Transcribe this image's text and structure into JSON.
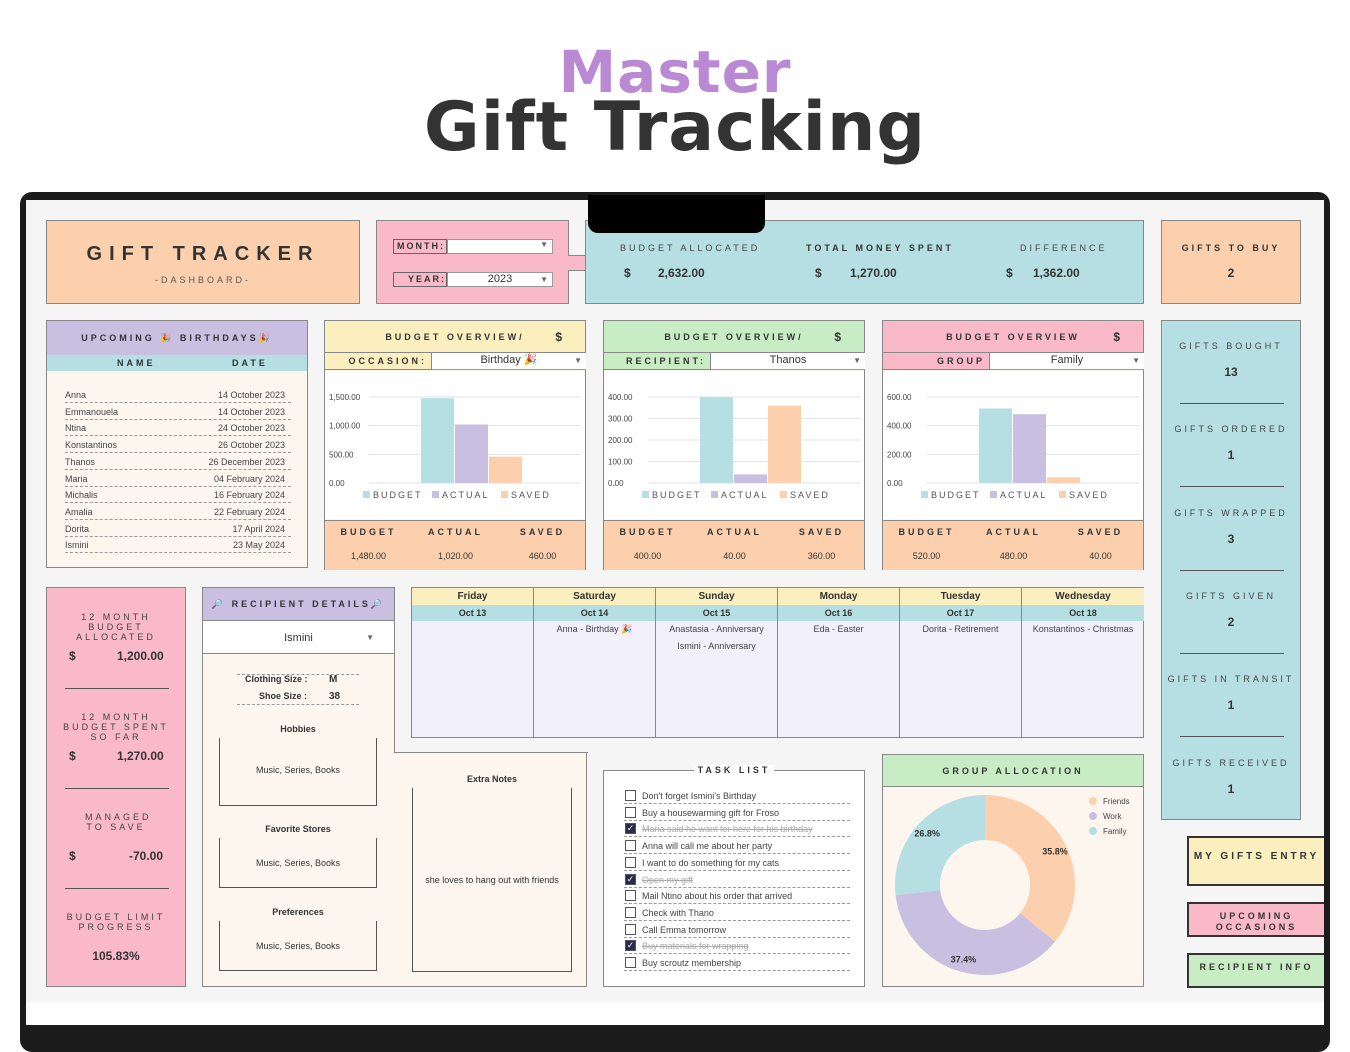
{
  "hero": {
    "line1": "Master",
    "line2": "Gift Tracking"
  },
  "title": {
    "main": "GIFT TRACKER",
    "sub": "-DASHBOARD-"
  },
  "filters": {
    "month_label": "MONTH:",
    "month_value": "",
    "year_label": "YEAR:",
    "year_value": "2023"
  },
  "summary": {
    "budget_label": "BUDGET ALLOCATED",
    "budget_value": "2,632.00",
    "spent_label": "TOTAL MONEY SPENT",
    "spent_value": "1,270.00",
    "diff_label": "DIFFERENCE",
    "diff_value": "1,362.00",
    "currency": "$"
  },
  "gifts_to_buy": {
    "label": "GIFTS TO BUY",
    "value": "2"
  },
  "birthdays": {
    "title": "UPCOMING 🎉 BIRTHDAYS🎉",
    "col_name": "NAME",
    "col_date": "DATE",
    "rows": [
      {
        "name": "Anna",
        "date": "14 October 2023"
      },
      {
        "name": "Emmanouela",
        "date": "14 October 2023"
      },
      {
        "name": "Ntina",
        "date": "24 October 2023"
      },
      {
        "name": "Konstantinos",
        "date": "26 October 2023"
      },
      {
        "name": "Thanos",
        "date": "26 December 2023"
      },
      {
        "name": "Maria",
        "date": "04 February 2024"
      },
      {
        "name": "Michalis",
        "date": "16 February 2024"
      },
      {
        "name": "Amalia",
        "date": "22 February 2024"
      },
      {
        "name": "Dorita",
        "date": "17 April 2024"
      },
      {
        "name": "Ismini",
        "date": "23 May 2024"
      }
    ]
  },
  "overview_occasion": {
    "title": "BUDGET OVERVIEW/",
    "currency": "$",
    "filter_label": "OCCASION:",
    "filter_value": "Birthday 🎉",
    "legend": [
      "BUDGET",
      "ACTUAL",
      "SAVED"
    ],
    "foot_labels": [
      "BUDGET",
      "ACTUAL",
      "SAVED"
    ],
    "foot_values": [
      "1,480.00",
      "1,020.00",
      "460.00"
    ],
    "ticks": [
      "1,500.00",
      "1,000.00",
      "500.00",
      "0.00"
    ]
  },
  "overview_recipient": {
    "title": "BUDGET OVERVIEW/",
    "currency": "$",
    "filter_label": "RECIPIENT:",
    "filter_value": "Thanos",
    "legend": [
      "BUDGET",
      "ACTUAL",
      "SAVED"
    ],
    "foot_labels": [
      "BUDGET",
      "ACTUAL",
      "SAVED"
    ],
    "foot_values": [
      "400.00",
      "40.00",
      "360.00"
    ],
    "ticks": [
      "400.00",
      "300.00",
      "200.00",
      "100.00",
      "0.00"
    ]
  },
  "overview_group": {
    "title": "BUDGET OVERVIEW",
    "currency": "$",
    "filter_label": "GROUP",
    "filter_value": "Family",
    "legend": [
      "BUDGET",
      "ACTUAL",
      "SAVED"
    ],
    "foot_labels": [
      "BUDGET",
      "ACTUAL",
      "SAVED"
    ],
    "foot_values": [
      "520.00",
      "480.00",
      "40.00"
    ],
    "ticks": [
      "600.00",
      "400.00",
      "200.00",
      "0.00"
    ]
  },
  "chart_data": [
    {
      "type": "bar",
      "categories": [
        "BUDGET",
        "ACTUAL",
        "SAVED"
      ],
      "values": [
        1480,
        1020,
        460
      ],
      "ylim": [
        0,
        1500
      ],
      "legend": "bottom"
    },
    {
      "type": "bar",
      "categories": [
        "BUDGET",
        "ACTUAL",
        "SAVED"
      ],
      "values": [
        400,
        40,
        360
      ],
      "ylim": [
        0,
        400
      ],
      "legend": "bottom"
    },
    {
      "type": "bar",
      "categories": [
        "BUDGET",
        "ACTUAL",
        "SAVED"
      ],
      "values": [
        520,
        480,
        40
      ],
      "ylim": [
        0,
        600
      ],
      "legend": "bottom"
    },
    {
      "type": "pie",
      "title": "GROUP ALLOCATION",
      "categories": [
        "Friends",
        "Work",
        "Family"
      ],
      "values": [
        35.8,
        37.4,
        26.8
      ],
      "legend": "top-right"
    }
  ],
  "colors": {
    "budget": "#b6dfe4",
    "actual": "#c9bfe0",
    "saved": "#fdd0ad"
  },
  "stats": [
    {
      "label": "GIFTS BOUGHT",
      "value": "13"
    },
    {
      "label": "GIFTS ORDERED",
      "value": "1"
    },
    {
      "label": "GIFTS WRAPPED",
      "value": "3"
    },
    {
      "label": "GIFTS GIVEN",
      "value": "2"
    },
    {
      "label": "GIFTS IN TRANSIT",
      "value": "1"
    },
    {
      "label": "GIFTS RECEIVED",
      "value": "1"
    }
  ],
  "budget12": {
    "alloc_label": "12 MONTH BUDGET ALLOCATED",
    "alloc_value": "1,200.00",
    "spent_label": "12 MONTH BUDGET SPENT SO FAR",
    "spent_value": "1,270.00",
    "saved_label": "MANAGED TO SAVE",
    "saved_value": "-70.00",
    "progress_label": "BUDGET LIMIT PROGRESS",
    "progress_value": "105.83%",
    "currency": "$"
  },
  "recipient": {
    "title": "🔎 RECIPIENT DETAILS🔎",
    "selected": "Ismini",
    "clothing_label": "Clothing Size :",
    "clothing_value": "M",
    "shoe_label": "Shoe Size :",
    "shoe_value": "38",
    "hobbies_label": "Hobbies",
    "hobbies_value": "Music, Series, Books",
    "stores_label": "Favorite Stores",
    "stores_value": "Music, Series, Books",
    "prefs_label": "Preferences",
    "prefs_value": "Music, Series, Books",
    "notes_label": "Extra Notes",
    "notes_value": "she loves to hang out with friends"
  },
  "calendar": [
    {
      "day": "Friday",
      "date": "Oct 13",
      "events": []
    },
    {
      "day": "Saturday",
      "date": "Oct 14",
      "events": [
        "Anna - Birthday 🎉"
      ]
    },
    {
      "day": "Sunday",
      "date": "Oct 15",
      "events": [
        "Anastasia - Anniversary",
        "Ismini - Anniversary"
      ]
    },
    {
      "day": "Monday",
      "date": "Oct 16",
      "events": [
        "Eda - Easter"
      ]
    },
    {
      "day": "Tuesday",
      "date": "Oct 17",
      "events": [
        "Dorita - Retirement"
      ]
    },
    {
      "day": "Wednesday",
      "date": "Oct 18",
      "events": [
        "Konstantinos - Christmas"
      ]
    }
  ],
  "tasks": {
    "title": "TASK LIST",
    "items": [
      {
        "text": "Don't forget Ismini's Birthday",
        "done": false
      },
      {
        "text": "Buy a housewarming gift for Froso",
        "done": false
      },
      {
        "text": "Maria said he want for here for his birthday",
        "done": true
      },
      {
        "text": "Anna will call me about her party",
        "done": false
      },
      {
        "text": "I want to do something for my cats",
        "done": false
      },
      {
        "text": "Open my gift",
        "done": true
      },
      {
        "text": "Mail Ntino about his order that arrived",
        "done": false
      },
      {
        "text": "Check with Thano",
        "done": false
      },
      {
        "text": "Call Emma tomorrow",
        "done": false
      },
      {
        "text": "Buy materials for wrapping",
        "done": true
      },
      {
        "text": "Buy scroutz membership",
        "done": false
      }
    ]
  },
  "group_alloc": {
    "title": "GROUP ALLOCATION",
    "legend": [
      "Friends",
      "Work",
      "Family"
    ],
    "labels": [
      "35.8%",
      "37.4%",
      "26.8%"
    ]
  },
  "nav": {
    "entry": "MY GIFTS ENTRY",
    "occasions": "UPCOMING OCCASIONS",
    "info": "RECIPIENT INFO"
  }
}
